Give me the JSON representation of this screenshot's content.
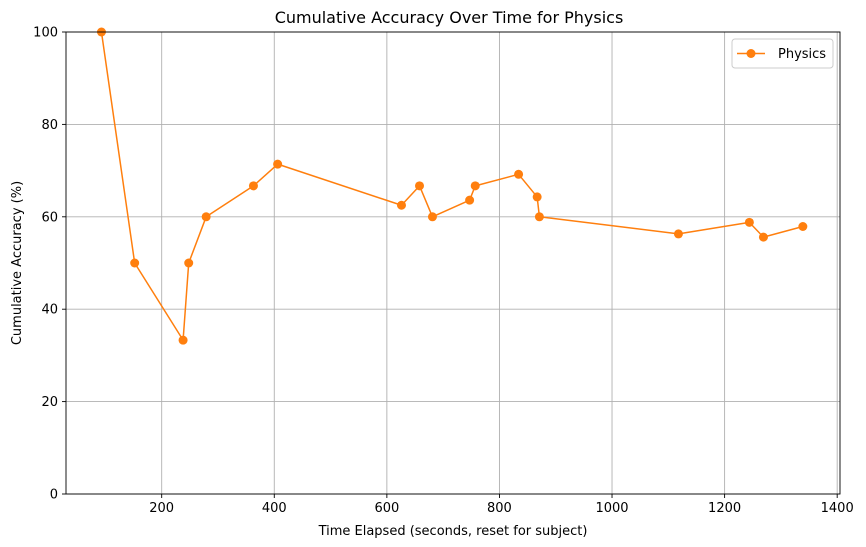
{
  "chart_data": {
    "type": "line",
    "title": "Cumulative Accuracy Over Time for Physics",
    "xlabel": "Time Elapsed (seconds, reset for subject)",
    "ylabel": "Cumulative Accuracy (%)",
    "xlim": [
      30,
      1405
    ],
    "ylim": [
      0,
      100
    ],
    "xticks": [
      200,
      400,
      600,
      800,
      1000,
      1200,
      1400
    ],
    "yticks": [
      0,
      20,
      40,
      60,
      80,
      100
    ],
    "grid": true,
    "legend_position": "top-right",
    "series": [
      {
        "name": "Physics",
        "color": "#ff7f0e",
        "marker": "circle",
        "x": [
          93,
          152,
          238,
          248,
          279,
          363,
          406,
          626,
          658,
          681,
          747,
          757,
          834,
          867,
          871,
          1118,
          1244,
          1269,
          1339
        ],
        "y": [
          100,
          50,
          33.3,
          50,
          60,
          66.7,
          71.4,
          62.5,
          66.7,
          60,
          63.6,
          66.7,
          69.2,
          64.3,
          60,
          56.3,
          58.8,
          55.6,
          57.9
        ]
      }
    ]
  }
}
